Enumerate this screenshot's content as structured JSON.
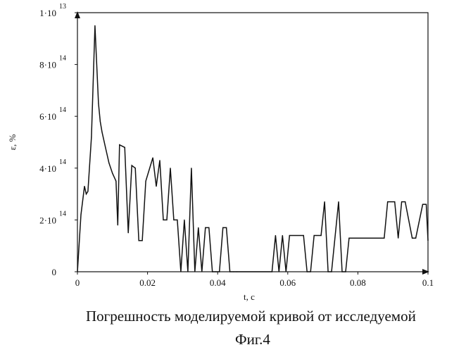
{
  "chart_data": {
    "type": "line",
    "xlabel": "t, c",
    "ylabel": "ε, %",
    "xlim": [
      0,
      0.1
    ],
    "ylim": [
      0,
      1.0
    ],
    "x_ticks": [
      {
        "value": 0,
        "label": "0"
      },
      {
        "value": 0.02,
        "label": "0.02"
      },
      {
        "value": 0.04,
        "label": "0.04"
      },
      {
        "value": 0.06,
        "label": "0.06"
      },
      {
        "value": 0.08,
        "label": "0.08"
      },
      {
        "value": 0.1,
        "label": "0.1"
      }
    ],
    "y_ticks": [
      {
        "value": 0,
        "label": "0",
        "exp": ""
      },
      {
        "value": 0.2,
        "label": "2·10",
        "exp": "14"
      },
      {
        "value": 0.4,
        "label": "4·10",
        "exp": "14"
      },
      {
        "value": 0.6,
        "label": "6·10",
        "exp": "14"
      },
      {
        "value": 0.8,
        "label": "8·10",
        "exp": "14"
      },
      {
        "value": 1.0,
        "label": "1·10",
        "exp": "13"
      }
    ],
    "grid": false,
    "line_color": "#111111",
    "series": [
      {
        "x": [
          0,
          0.001,
          0.002,
          0.0025,
          0.003,
          0.004,
          0.005,
          0.006,
          0.0065,
          0.007,
          0.008,
          0.009,
          0.01,
          0.011,
          0.0115,
          0.012,
          0.0135,
          0.0145,
          0.0155,
          0.0165,
          0.0175,
          0.0185,
          0.0195,
          0.0215,
          0.0225,
          0.0235,
          0.0245,
          0.0255,
          0.0265,
          0.0275,
          0.0285,
          0.0295,
          0.0305,
          0.0315,
          0.0325,
          0.0335,
          0.0345,
          0.0355,
          0.0365,
          0.0375,
          0.0385,
          0.0395,
          0.0405,
          0.0415,
          0.0425,
          0.0435,
          0.0445,
          0.0455,
          0.0555,
          0.0565,
          0.0575,
          0.0585,
          0.0595,
          0.0605,
          0.0645,
          0.0655,
          0.0665,
          0.0675,
          0.0695,
          0.0705,
          0.0715,
          0.0725,
          0.0745,
          0.0755,
          0.0765,
          0.0775,
          0.0875,
          0.0885,
          0.0905,
          0.0915,
          0.0925,
          0.0935,
          0.0955,
          0.0965,
          0.0985,
          0.0995,
          0.1
        ],
        "y": [
          0,
          0.22,
          0.33,
          0.3,
          0.31,
          0.52,
          0.95,
          0.65,
          0.58,
          0.54,
          0.48,
          0.42,
          0.38,
          0.35,
          0.18,
          0.49,
          0.48,
          0.15,
          0.41,
          0.4,
          0.12,
          0.12,
          0.35,
          0.44,
          0.33,
          0.43,
          0.2,
          0.2,
          0.4,
          0.2,
          0.2,
          0.0,
          0.2,
          0.0,
          0.4,
          0.0,
          0.17,
          0.0,
          0.17,
          0.17,
          0.0,
          0.0,
          0.0,
          0.17,
          0.17,
          0.0,
          0.0,
          0.0,
          0.0,
          0.14,
          0.0,
          0.14,
          0.0,
          0.14,
          0.14,
          0.0,
          0.0,
          0.14,
          0.14,
          0.27,
          0.0,
          0.0,
          0.27,
          0.0,
          0.0,
          0.13,
          0.13,
          0.27,
          0.27,
          0.13,
          0.27,
          0.27,
          0.13,
          0.13,
          0.26,
          0.26,
          0.12
        ]
      }
    ]
  },
  "caption": {
    "line1": "Погрешность моделируемой кривой от исследуемой",
    "line2": "Фиг.4"
  }
}
